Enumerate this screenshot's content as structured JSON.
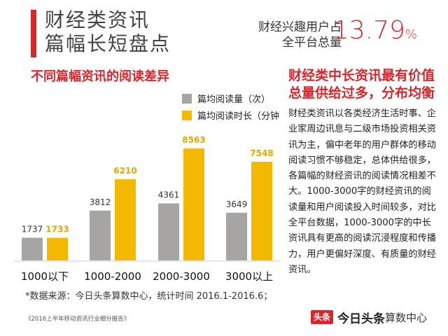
{
  "header": {
    "title_line1": "财经类资讯",
    "title_line2": "篇幅长短盘点",
    "stat_label_line1": "财经兴趣用户占",
    "stat_label_line2": "全平台总量",
    "stat_value": "13.79",
    "stat_unit": "%",
    "accent_color": "#d9262b"
  },
  "chart_data": {
    "type": "bar",
    "title": "不同篇幅资讯的阅读差异",
    "categories": [
      "1000以下",
      "1000-2000",
      "2000-3000",
      "3000以上"
    ],
    "series": [
      {
        "name": "篇均阅读量（次）",
        "values": [
          1737,
          3812,
          4361,
          3649
        ],
        "color": "#a7a4a4"
      },
      {
        "name": "篇均阅读时长（分钟）",
        "values": [
          1733,
          6210,
          8563,
          7548
        ],
        "color": "#f4b800"
      }
    ],
    "ylim": [
      0,
      9000
    ],
    "grid": false,
    "legend": "top-right",
    "y_axis_shown": false
  },
  "right_panel": {
    "heading_line1": "财经类中长资讯最有价值",
    "heading_line2": "总量供给过多，分布均衡",
    "body": "财经类资讯以各类经济生活时事、企业家周边讯息与二级市场投资相关资讯为主，偏中老年的用户群体的移动阅读习惯不够稳定，总体供给很多，各篇幅的财经资讯的阅读情况相差不大。1000-3000字的财经资讯的阅读量和用户阅读投入时间较多，对比全平台数据，1000-3000字的中长资讯具有更高的阅读沉浸程度和传播力，用户更偏好深度、有质量的财经资讯。"
  },
  "source_note": "*数据来源：今日头条算数中心，统计时间 2016.1-2016.6；",
  "footer": {
    "report_name": "《2016上半年移动资讯行业细分报告》",
    "brand_badge": "头条",
    "brand_name": "今日头条",
    "brand_sub": "算数中心"
  }
}
